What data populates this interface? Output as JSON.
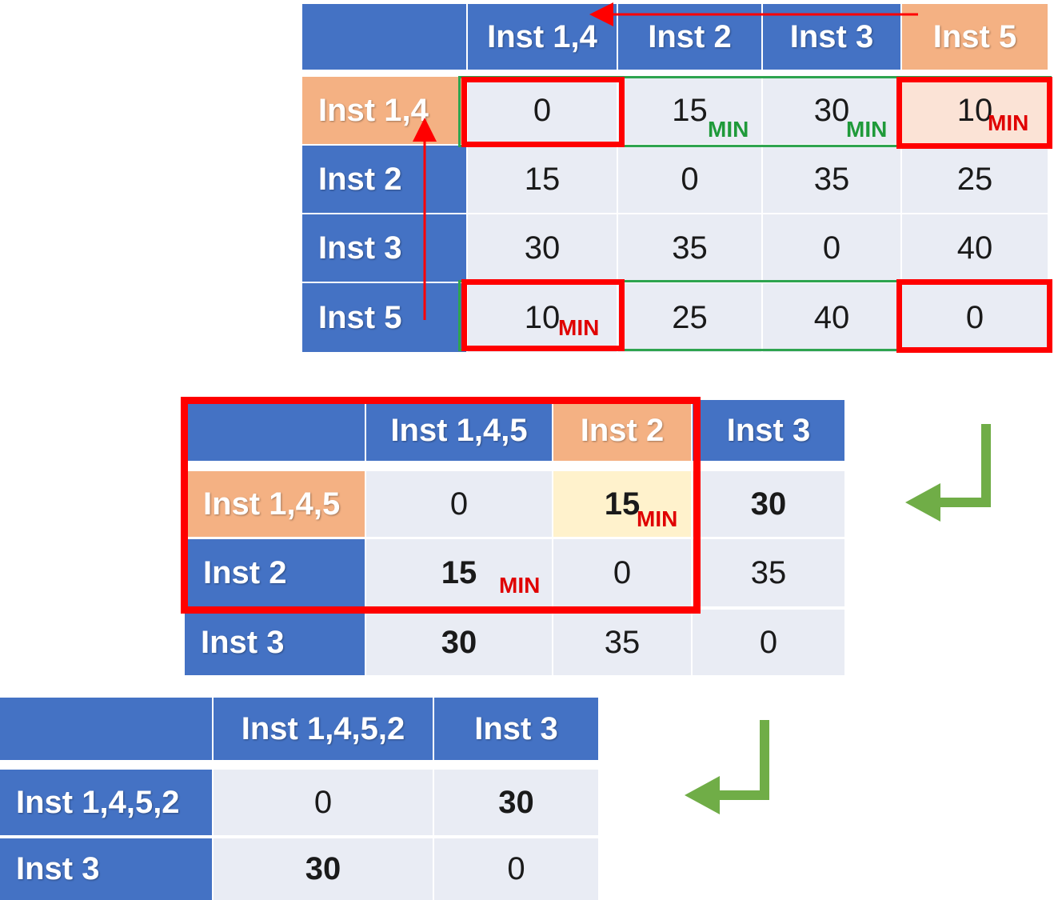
{
  "tables": [
    {
      "columns": [
        "Inst 1,4",
        "Inst 2",
        "Inst 3",
        "Inst 5"
      ],
      "rows": [
        {
          "label": "Inst 1,4",
          "values": [
            "0",
            "15",
            "30",
            "10"
          ]
        },
        {
          "label": "Inst 2",
          "values": [
            "15",
            "0",
            "35",
            "25"
          ]
        },
        {
          "label": "Inst 3",
          "values": [
            "30",
            "35",
            "0",
            "40"
          ]
        },
        {
          "label": "Inst 5",
          "values": [
            "10",
            "25",
            "40",
            "0"
          ]
        }
      ]
    },
    {
      "columns": [
        "Inst 1,4,5",
        "Inst 2",
        "Inst 3"
      ],
      "rows": [
        {
          "label": "Inst 1,4,5",
          "values": [
            "0",
            "15",
            "30"
          ]
        },
        {
          "label": "Inst 2",
          "values": [
            "15",
            "0",
            "35"
          ]
        },
        {
          "label": "Inst 3",
          "values": [
            "30",
            "35",
            "0"
          ]
        }
      ]
    },
    {
      "columns": [
        "Inst 1,4,5,2",
        "Inst 3"
      ],
      "rows": [
        {
          "label": "Inst 1,4,5,2",
          "values": [
            "0",
            "30"
          ]
        },
        {
          "label": "Inst 3",
          "values": [
            "30",
            "0"
          ]
        }
      ]
    }
  ],
  "min_label": "MIN",
  "colors": {
    "header_blue": "#4472c4",
    "header_orange": "#f4b183",
    "cell_bg": "#e9ecf4",
    "highlight_red": "#ff0000",
    "highlight_green": "#2ea44f",
    "min_red": "#e00000",
    "min_green": "#1f9a3a",
    "arrow_green": "#70ad47"
  }
}
